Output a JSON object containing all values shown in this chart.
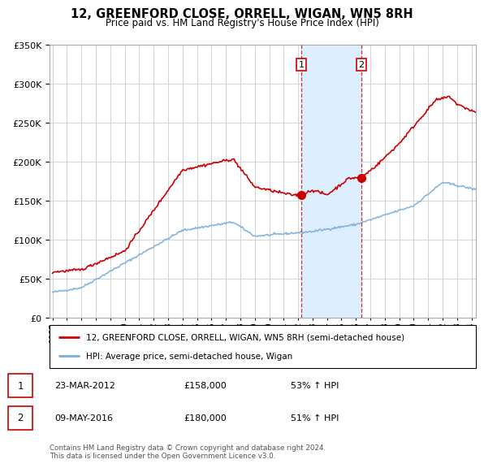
{
  "title": "12, GREENFORD CLOSE, ORRELL, WIGAN, WN5 8RH",
  "subtitle": "Price paid vs. HM Land Registry's House Price Index (HPI)",
  "legend_line1": "12, GREENFORD CLOSE, ORRELL, WIGAN, WN5 8RH (semi-detached house)",
  "legend_line2": "HPI: Average price, semi-detached house, Wigan",
  "footer": "Contains HM Land Registry data © Crown copyright and database right 2024.\nThis data is licensed under the Open Government Licence v3.0.",
  "sale1_date": "23-MAR-2012",
  "sale1_price": "£158,000",
  "sale1_hpi": "53% ↑ HPI",
  "sale2_date": "09-MAY-2016",
  "sale2_price": "£180,000",
  "sale2_hpi": "51% ↑ HPI",
  "sale1_year": 2012.22,
  "sale2_year": 2016.37,
  "sale1_price_val": 158000,
  "sale2_price_val": 180000,
  "red_color": "#cc0000",
  "blue_color": "#7aaed6",
  "shade_color": "#ddeeff",
  "grid_color": "#cccccc",
  "ylim": [
    0,
    350000
  ],
  "xlim_start": 1995.0,
  "xlim_end": 2024.3
}
